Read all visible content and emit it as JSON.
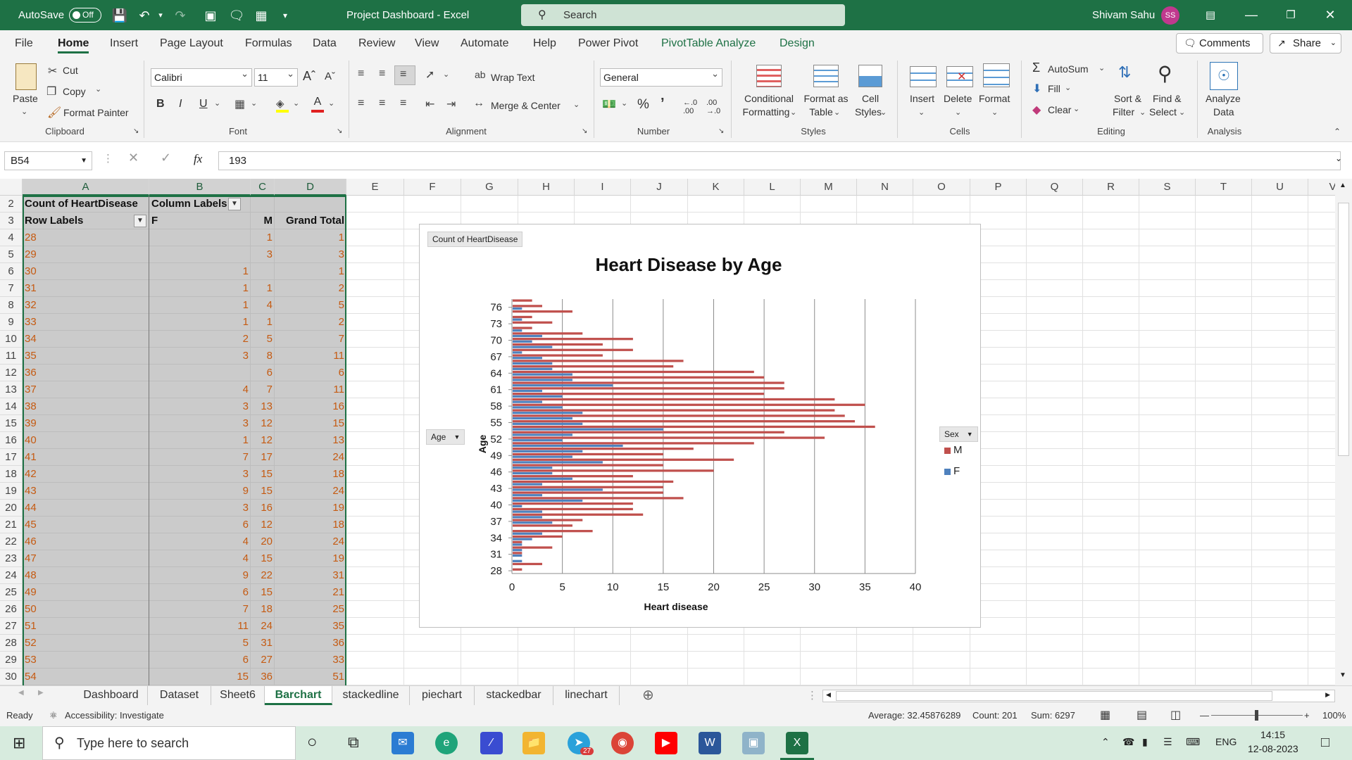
{
  "titlebar": {
    "autosave_label": "AutoSave",
    "autosave_state": "Off",
    "document_title": "Project Dashboard  -  Excel",
    "search_placeholder": "Search",
    "user_name": "Shivam Sahu",
    "user_initials": "SS"
  },
  "menu_tabs": [
    "File",
    "Home",
    "Insert",
    "Page Layout",
    "Formulas",
    "Data",
    "Review",
    "View",
    "Automate",
    "Help",
    "Power Pivot",
    "PivotTable Analyze",
    "Design"
  ],
  "active_tab": "Home",
  "top_buttons": {
    "comments": "Comments",
    "share": "Share"
  },
  "ribbon": {
    "clipboard": {
      "paste": "Paste",
      "cut": "Cut",
      "copy": "Copy",
      "format_painter": "Format Painter",
      "group": "Clipboard"
    },
    "font": {
      "name": "Calibri",
      "size": "11",
      "bold": "B",
      "italic": "I",
      "underline": "U",
      "group": "Font"
    },
    "alignment": {
      "wrap_text": "Wrap Text",
      "merge_center": "Merge & Center",
      "group": "Alignment"
    },
    "number": {
      "format": "General",
      "group": "Number"
    },
    "styles": {
      "conditional_1": "Conditional",
      "conditional_2": "Formatting",
      "format_table_1": "Format as",
      "format_table_2": "Table",
      "cell_styles_1": "Cell",
      "cell_styles_2": "Styles",
      "group": "Styles"
    },
    "cells": {
      "insert": "Insert",
      "delete": "Delete",
      "format": "Format",
      "group": "Cells"
    },
    "editing": {
      "autosum": "AutoSum",
      "fill": "Fill",
      "clear": "Clear",
      "sort_1": "Sort &",
      "sort_2": "Filter",
      "find_1": "Find &",
      "find_2": "Select",
      "group": "Editing"
    },
    "analysis": {
      "analyze_1": "Analyze",
      "analyze_2": "Data",
      "group": "Analysis"
    }
  },
  "formula_bar": {
    "name_box": "B54",
    "fx": "fx",
    "value": "193"
  },
  "columns": [
    "A",
    "B",
    "C",
    "D",
    "E",
    "F",
    "G",
    "H",
    "I",
    "J",
    "K",
    "L",
    "M",
    "N",
    "O",
    "P",
    "Q",
    "R",
    "S",
    "T",
    "U",
    "V"
  ],
  "pivot": {
    "title": "Count of HeartDisease",
    "column_labels": "Column Labels",
    "row_labels": "Row Labels",
    "col_f": "F",
    "col_m": "M",
    "grand_total": "Grand Total",
    "rows": [
      {
        "row": "4",
        "age": "28",
        "f": "",
        "m": "1",
        "total": "1"
      },
      {
        "row": "5",
        "age": "29",
        "f": "",
        "m": "3",
        "total": "3"
      },
      {
        "row": "6",
        "age": "30",
        "f": "1",
        "m": "",
        "total": "1"
      },
      {
        "row": "7",
        "age": "31",
        "f": "1",
        "m": "1",
        "total": "2"
      },
      {
        "row": "8",
        "age": "32",
        "f": "1",
        "m": "4",
        "total": "5"
      },
      {
        "row": "9",
        "age": "33",
        "f": "1",
        "m": "1",
        "total": "2"
      },
      {
        "row": "10",
        "age": "34",
        "f": "2",
        "m": "5",
        "total": "7"
      },
      {
        "row": "11",
        "age": "35",
        "f": "3",
        "m": "8",
        "total": "11"
      },
      {
        "row": "12",
        "age": "36",
        "f": "",
        "m": "6",
        "total": "6"
      },
      {
        "row": "13",
        "age": "37",
        "f": "4",
        "m": "7",
        "total": "11"
      },
      {
        "row": "14",
        "age": "38",
        "f": "3",
        "m": "13",
        "total": "16"
      },
      {
        "row": "15",
        "age": "39",
        "f": "3",
        "m": "12",
        "total": "15"
      },
      {
        "row": "16",
        "age": "40",
        "f": "1",
        "m": "12",
        "total": "13"
      },
      {
        "row": "17",
        "age": "41",
        "f": "7",
        "m": "17",
        "total": "24"
      },
      {
        "row": "18",
        "age": "42",
        "f": "3",
        "m": "15",
        "total": "18"
      },
      {
        "row": "19",
        "age": "43",
        "f": "9",
        "m": "15",
        "total": "24"
      },
      {
        "row": "20",
        "age": "44",
        "f": "3",
        "m": "16",
        "total": "19"
      },
      {
        "row": "21",
        "age": "45",
        "f": "6",
        "m": "12",
        "total": "18"
      },
      {
        "row": "22",
        "age": "46",
        "f": "4",
        "m": "20",
        "total": "24"
      },
      {
        "row": "23",
        "age": "47",
        "f": "4",
        "m": "15",
        "total": "19"
      },
      {
        "row": "24",
        "age": "48",
        "f": "9",
        "m": "22",
        "total": "31"
      },
      {
        "row": "25",
        "age": "49",
        "f": "6",
        "m": "15",
        "total": "21"
      },
      {
        "row": "26",
        "age": "50",
        "f": "7",
        "m": "18",
        "total": "25"
      },
      {
        "row": "27",
        "age": "51",
        "f": "11",
        "m": "24",
        "total": "35"
      },
      {
        "row": "28",
        "age": "52",
        "f": "5",
        "m": "31",
        "total": "36"
      },
      {
        "row": "29",
        "age": "53",
        "f": "6",
        "m": "27",
        "total": "33"
      },
      {
        "row": "30",
        "age": "54",
        "f": "15",
        "m": "36",
        "total": "51"
      }
    ]
  },
  "header_rows": [
    "2",
    "3"
  ],
  "chart_data": {
    "type": "bar",
    "orientation": "horizontal",
    "title": "Heart Disease by Age",
    "xlabel": "Heart disease",
    "ylabel": "Age",
    "xlim": [
      0,
      40
    ],
    "xticks": [
      0,
      5,
      10,
      15,
      20,
      25,
      30,
      35,
      40
    ],
    "ytick_labels": [
      "76",
      "73",
      "70",
      "67",
      "64",
      "61",
      "58",
      "55",
      "52",
      "49",
      "46",
      "43",
      "40",
      "37",
      "34",
      "31",
      "28"
    ],
    "categories": [
      28,
      29,
      30,
      31,
      32,
      33,
      34,
      35,
      36,
      37,
      38,
      39,
      40,
      41,
      42,
      43,
      44,
      45,
      46,
      47,
      48,
      49,
      50,
      51,
      52,
      53,
      54,
      55,
      56,
      57,
      58,
      59,
      60,
      61,
      62,
      63,
      64,
      65,
      66,
      67,
      68,
      69,
      70,
      71,
      72,
      73,
      74,
      75,
      76,
      77
    ],
    "series": [
      {
        "name": "M",
        "color": "#c0504d",
        "values": [
          1,
          3,
          0,
          1,
          4,
          1,
          5,
          8,
          6,
          7,
          13,
          12,
          12,
          17,
          15,
          15,
          16,
          12,
          20,
          15,
          22,
          15,
          18,
          24,
          31,
          27,
          36,
          34,
          33,
          32,
          35,
          32,
          25,
          27,
          27,
          25,
          24,
          16,
          17,
          9,
          12,
          9,
          12,
          7,
          2,
          4,
          2,
          6,
          3,
          2
        ]
      },
      {
        "name": "F",
        "color": "#4f81bd",
        "values": [
          0,
          0,
          1,
          1,
          1,
          1,
          2,
          3,
          0,
          4,
          3,
          3,
          1,
          7,
          3,
          9,
          3,
          6,
          4,
          4,
          9,
          6,
          7,
          11,
          5,
          6,
          15,
          7,
          6,
          7,
          5,
          3,
          5,
          3,
          10,
          6,
          6,
          4,
          4,
          3,
          1,
          4,
          2,
          3,
          1,
          0,
          1,
          0,
          1,
          0
        ]
      }
    ],
    "field_buttons": {
      "values": "Count of HeartDisease",
      "axis": "Age",
      "legend": "Sex"
    },
    "legend": {
      "position": "right",
      "entries": [
        "M",
        "F"
      ]
    },
    "grid": true
  },
  "sheet_tabs": [
    "Dashboard",
    "Dataset",
    "Sheet6",
    "Barchart",
    "stackedline",
    "piechart",
    "stackedbar",
    "linechart"
  ],
  "active_sheet": "Barchart",
  "status_bar": {
    "ready": "Ready",
    "accessibility": "Accessibility: Investigate",
    "average": "Average: 32.45876289",
    "count": "Count: 201",
    "sum": "Sum: 6297",
    "zoom": "100%"
  },
  "taskbar": {
    "search_placeholder": "Type here to search",
    "language": "ENG",
    "time": "14:15",
    "date": "12-08-2023",
    "badge": "27"
  }
}
